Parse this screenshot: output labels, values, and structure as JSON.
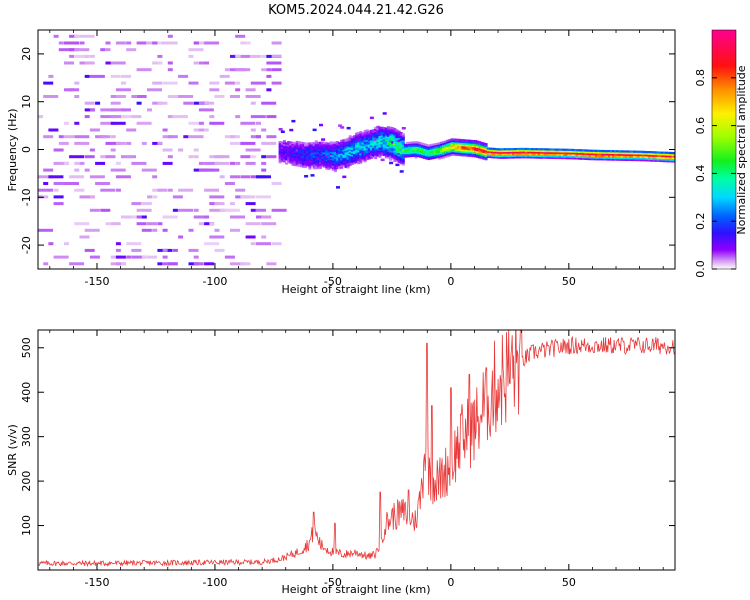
{
  "title": "KOM5.2024.044.21.42.G26",
  "chart_data": [
    {
      "type": "heatmap",
      "xlabel": "Height of straight line (km)",
      "ylabel": "Frequency (Hz)",
      "xlim": [
        -175,
        95
      ],
      "ylim": [
        -25,
        25
      ],
      "xticks": [
        -150,
        -100,
        -50,
        0,
        50
      ],
      "yticks": [
        -20,
        -10,
        0,
        10,
        20
      ],
      "colorbar": {
        "label": "Normalized spectral amplitude",
        "range": [
          0,
          1
        ],
        "ticks": [
          "0.0",
          "0.2",
          "0.4",
          "0.6",
          "0.8"
        ],
        "colormap": "rainbow"
      },
      "noise_region_x": [
        -175,
        -75
      ],
      "noise_amplitude": 0.08,
      "signal_ridge": [
        {
          "x": -73,
          "f": 0.0,
          "amp": 0.12
        },
        {
          "x": -62,
          "f": -1.0,
          "amp": 0.18
        },
        {
          "x": -55,
          "f": -0.8,
          "amp": 0.22
        },
        {
          "x": -50,
          "f": -1.2,
          "amp": 0.25
        },
        {
          "x": -45,
          "f": -0.5,
          "amp": 0.3
        },
        {
          "x": -40,
          "f": 0.5,
          "amp": 0.35
        },
        {
          "x": -35,
          "f": 1.2,
          "amp": 0.3
        },
        {
          "x": -30,
          "f": 2.0,
          "amp": 0.35
        },
        {
          "x": -25,
          "f": 1.5,
          "amp": 0.45
        },
        {
          "x": -20,
          "f": 0.0,
          "amp": 0.45
        },
        {
          "x": -15,
          "f": 0.2,
          "amp": 0.5
        },
        {
          "x": -10,
          "f": -0.5,
          "amp": 0.45
        },
        {
          "x": -5,
          "f": 0.0,
          "amp": 0.55
        },
        {
          "x": 0,
          "f": 0.8,
          "amp": 0.7
        },
        {
          "x": 5,
          "f": 0.6,
          "amp": 0.85
        },
        {
          "x": 10,
          "f": 0.4,
          "amp": 0.92
        },
        {
          "x": 15,
          "f": -0.3,
          "amp": 0.95
        },
        {
          "x": 20,
          "f": -0.5,
          "amp": 0.96
        },
        {
          "x": 30,
          "f": -0.4,
          "amp": 0.95
        },
        {
          "x": 40,
          "f": -0.5,
          "amp": 0.95
        },
        {
          "x": 50,
          "f": -0.6,
          "amp": 0.94
        },
        {
          "x": 60,
          "f": -0.8,
          "amp": 0.95
        },
        {
          "x": 70,
          "f": -0.9,
          "amp": 0.95
        },
        {
          "x": 80,
          "f": -1.0,
          "amp": 0.93
        },
        {
          "x": 90,
          "f": -1.2,
          "amp": 0.92
        },
        {
          "x": 95,
          "f": -1.3,
          "amp": 0.9
        }
      ]
    },
    {
      "type": "line",
      "xlabel": "Height of straight line (km)",
      "ylabel": "SNR (v/v)",
      "xlim": [
        -175,
        95
      ],
      "ylim": [
        0,
        540
      ],
      "xticks": [
        -150,
        -100,
        -50,
        0,
        50
      ],
      "yticks": [
        100,
        200,
        300,
        400,
        500
      ],
      "line_color": "#e83a3a",
      "series": [
        {
          "x": [
            -175,
            -150,
            -125,
            -100,
            -80,
            -72,
            -65,
            -60,
            -58,
            -55,
            -50,
            -45,
            -40,
            -35,
            -32,
            -30,
            -28,
            -25,
            -20,
            -15,
            -13,
            -12,
            -11,
            -10,
            -8,
            -5,
            0,
            5,
            10,
            15,
            20,
            25,
            30,
            35,
            40,
            50,
            60,
            70,
            80,
            90,
            95
          ],
          "y": [
            15,
            15,
            16,
            17,
            18,
            25,
            40,
            60,
            90,
            55,
            40,
            35,
            40,
            30,
            35,
            60,
            100,
            120,
            130,
            110,
            160,
            200,
            290,
            240,
            200,
            200,
            240,
            300,
            320,
            380,
            420,
            450,
            470,
            490,
            495,
            505,
            505,
            505,
            505,
            505,
            505
          ]
        }
      ],
      "spikes": [
        {
          "x": -58,
          "y": 130
        },
        {
          "x": -49,
          "y": 105
        },
        {
          "x": -30,
          "y": 175
        },
        {
          "x": -18,
          "y": 180
        },
        {
          "x": -10,
          "y": 510
        },
        {
          "x": -8,
          "y": 370
        },
        {
          "x": 0,
          "y": 410
        },
        {
          "x": 8,
          "y": 440
        },
        {
          "x": 15,
          "y": 455
        }
      ]
    }
  ]
}
